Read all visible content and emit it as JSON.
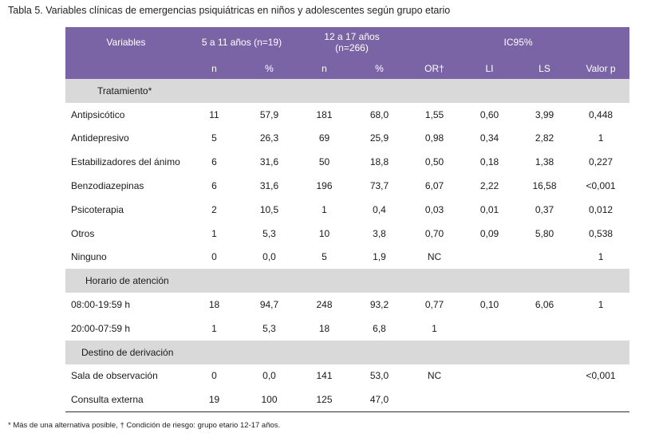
{
  "caption": "Tabla 5. Variables clínicas de emergencias psiquiátricas en niños y adolescentes según grupo etario",
  "header": {
    "variables": "Variables",
    "group1": "5 a 11 años (n=19)",
    "group2": "12 a 17 años (n=266)",
    "ic95": "IC95%",
    "sub": [
      "n",
      "%",
      "n",
      "%",
      "OR†",
      "LI",
      "LS",
      "Valor p"
    ]
  },
  "sections": [
    {
      "title": "Tratamiento*",
      "rows": [
        {
          "label": "Antipsicótico",
          "cells": [
            "11",
            "57,9",
            "181",
            "68,0",
            "1,55",
            "0,60",
            "3,99",
            "0,448"
          ]
        },
        {
          "label": "Antidepresivo",
          "cells": [
            "5",
            "26,3",
            "69",
            "25,9",
            "0,98",
            "0,34",
            "2,82",
            "1"
          ]
        },
        {
          "label": "Estabilizadores del ánimo",
          "cells": [
            "6",
            "31,6",
            "50",
            "18,8",
            "0,50",
            "0,18",
            "1,38",
            "0,227"
          ]
        },
        {
          "label": "Benzodiazepinas",
          "cells": [
            "6",
            "31,6",
            "196",
            "73,7",
            "6,07",
            "2,22",
            "16,58",
            "<0,001"
          ]
        },
        {
          "label": "Psicoterapia",
          "cells": [
            "2",
            "10,5",
            "1",
            "0,4",
            "0,03",
            "0,01",
            "0,37",
            "0,012"
          ]
        },
        {
          "label": "Otros",
          "cells": [
            "1",
            "5,3",
            "10",
            "3,8",
            "0,70",
            "0,09",
            "5,80",
            "0,538"
          ]
        },
        {
          "label": "Ninguno",
          "cells": [
            "0",
            "0,0",
            "5",
            "1,9",
            "NC",
            "",
            "",
            "1"
          ]
        }
      ]
    },
    {
      "title": "Horario de atención",
      "rows": [
        {
          "label": "08:00-19:59 h",
          "cells": [
            "18",
            "94,7",
            "248",
            "93,2",
            "0,77",
            "0,10",
            "6,06",
            "1"
          ]
        },
        {
          "label": "20:00-07:59 h",
          "cells": [
            "1",
            "5,3",
            "18",
            "6,8",
            "1",
            "",
            "",
            ""
          ]
        }
      ]
    },
    {
      "title": "Destino de derivación",
      "rows": [
        {
          "label": "Sala de observación",
          "cells": [
            "0",
            "0,0",
            "141",
            "53,0",
            "NC",
            "",
            "",
            "<0,001"
          ]
        },
        {
          "label": "Consulta externa",
          "cells": [
            "19",
            "100",
            "125",
            "47,0",
            "",
            "",
            "",
            ""
          ]
        }
      ]
    }
  ],
  "footnote": "* Más de una alternativa posible, † Condición de riesgo: grupo etario 12-17 años."
}
